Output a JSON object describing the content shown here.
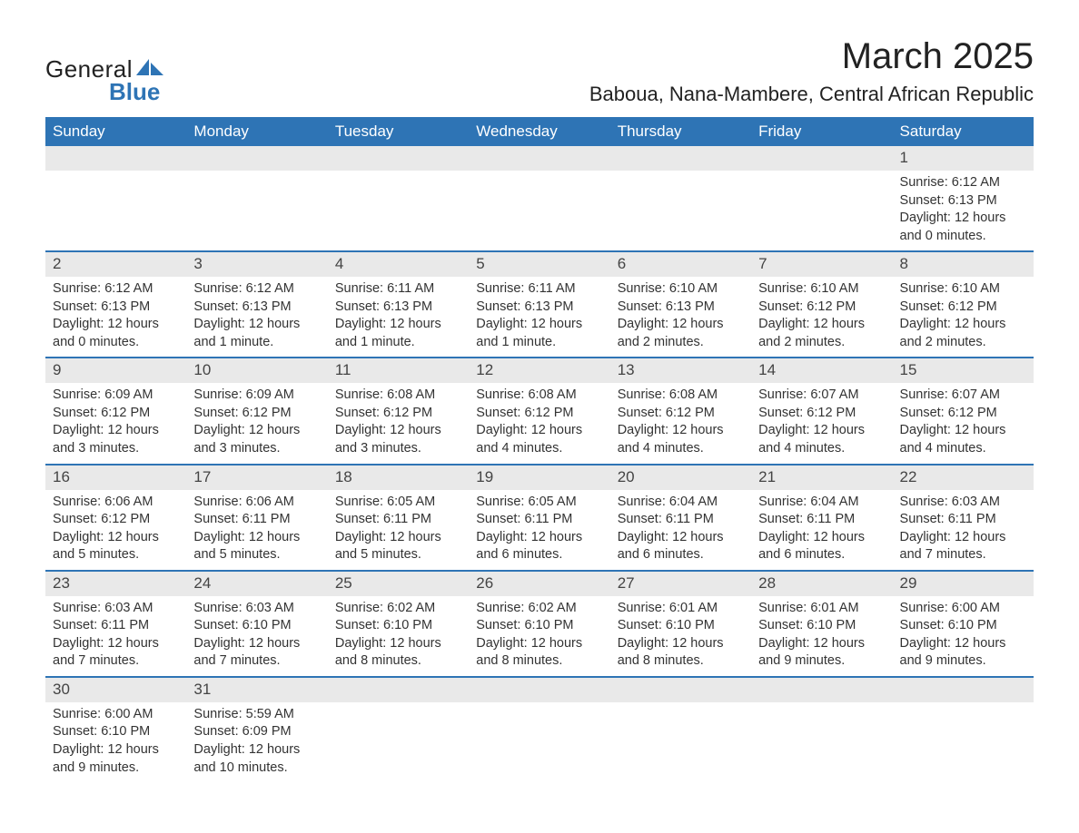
{
  "logo": {
    "line1": "General",
    "line2": "Blue",
    "brand_color": "#2e74b5"
  },
  "title": "March 2025",
  "location": "Baboua, Nana-Mambere, Central African Republic",
  "day_headers": [
    "Sunday",
    "Monday",
    "Tuesday",
    "Wednesday",
    "Thursday",
    "Friday",
    "Saturday"
  ],
  "colors": {
    "header_bg": "#2e74b5",
    "header_text": "#ffffff",
    "daynum_bg": "#e9e9e9",
    "row_border": "#2e74b5",
    "body_text": "#333333",
    "page_bg": "#ffffff"
  },
  "typography": {
    "title_fontsize": 40,
    "location_fontsize": 22,
    "header_fontsize": 17,
    "daynum_fontsize": 17,
    "detail_fontsize": 14.5
  },
  "weeks": [
    [
      null,
      null,
      null,
      null,
      null,
      null,
      {
        "n": "1",
        "sr": "Sunrise: 6:12 AM",
        "ss": "Sunset: 6:13 PM",
        "dl": "Daylight: 12 hours and 0 minutes."
      }
    ],
    [
      {
        "n": "2",
        "sr": "Sunrise: 6:12 AM",
        "ss": "Sunset: 6:13 PM",
        "dl": "Daylight: 12 hours and 0 minutes."
      },
      {
        "n": "3",
        "sr": "Sunrise: 6:12 AM",
        "ss": "Sunset: 6:13 PM",
        "dl": "Daylight: 12 hours and 1 minute."
      },
      {
        "n": "4",
        "sr": "Sunrise: 6:11 AM",
        "ss": "Sunset: 6:13 PM",
        "dl": "Daylight: 12 hours and 1 minute."
      },
      {
        "n": "5",
        "sr": "Sunrise: 6:11 AM",
        "ss": "Sunset: 6:13 PM",
        "dl": "Daylight: 12 hours and 1 minute."
      },
      {
        "n": "6",
        "sr": "Sunrise: 6:10 AM",
        "ss": "Sunset: 6:13 PM",
        "dl": "Daylight: 12 hours and 2 minutes."
      },
      {
        "n": "7",
        "sr": "Sunrise: 6:10 AM",
        "ss": "Sunset: 6:12 PM",
        "dl": "Daylight: 12 hours and 2 minutes."
      },
      {
        "n": "8",
        "sr": "Sunrise: 6:10 AM",
        "ss": "Sunset: 6:12 PM",
        "dl": "Daylight: 12 hours and 2 minutes."
      }
    ],
    [
      {
        "n": "9",
        "sr": "Sunrise: 6:09 AM",
        "ss": "Sunset: 6:12 PM",
        "dl": "Daylight: 12 hours and 3 minutes."
      },
      {
        "n": "10",
        "sr": "Sunrise: 6:09 AM",
        "ss": "Sunset: 6:12 PM",
        "dl": "Daylight: 12 hours and 3 minutes."
      },
      {
        "n": "11",
        "sr": "Sunrise: 6:08 AM",
        "ss": "Sunset: 6:12 PM",
        "dl": "Daylight: 12 hours and 3 minutes."
      },
      {
        "n": "12",
        "sr": "Sunrise: 6:08 AM",
        "ss": "Sunset: 6:12 PM",
        "dl": "Daylight: 12 hours and 4 minutes."
      },
      {
        "n": "13",
        "sr": "Sunrise: 6:08 AM",
        "ss": "Sunset: 6:12 PM",
        "dl": "Daylight: 12 hours and 4 minutes."
      },
      {
        "n": "14",
        "sr": "Sunrise: 6:07 AM",
        "ss": "Sunset: 6:12 PM",
        "dl": "Daylight: 12 hours and 4 minutes."
      },
      {
        "n": "15",
        "sr": "Sunrise: 6:07 AM",
        "ss": "Sunset: 6:12 PM",
        "dl": "Daylight: 12 hours and 4 minutes."
      }
    ],
    [
      {
        "n": "16",
        "sr": "Sunrise: 6:06 AM",
        "ss": "Sunset: 6:12 PM",
        "dl": "Daylight: 12 hours and 5 minutes."
      },
      {
        "n": "17",
        "sr": "Sunrise: 6:06 AM",
        "ss": "Sunset: 6:11 PM",
        "dl": "Daylight: 12 hours and 5 minutes."
      },
      {
        "n": "18",
        "sr": "Sunrise: 6:05 AM",
        "ss": "Sunset: 6:11 PM",
        "dl": "Daylight: 12 hours and 5 minutes."
      },
      {
        "n": "19",
        "sr": "Sunrise: 6:05 AM",
        "ss": "Sunset: 6:11 PM",
        "dl": "Daylight: 12 hours and 6 minutes."
      },
      {
        "n": "20",
        "sr": "Sunrise: 6:04 AM",
        "ss": "Sunset: 6:11 PM",
        "dl": "Daylight: 12 hours and 6 minutes."
      },
      {
        "n": "21",
        "sr": "Sunrise: 6:04 AM",
        "ss": "Sunset: 6:11 PM",
        "dl": "Daylight: 12 hours and 6 minutes."
      },
      {
        "n": "22",
        "sr": "Sunrise: 6:03 AM",
        "ss": "Sunset: 6:11 PM",
        "dl": "Daylight: 12 hours and 7 minutes."
      }
    ],
    [
      {
        "n": "23",
        "sr": "Sunrise: 6:03 AM",
        "ss": "Sunset: 6:11 PM",
        "dl": "Daylight: 12 hours and 7 minutes."
      },
      {
        "n": "24",
        "sr": "Sunrise: 6:03 AM",
        "ss": "Sunset: 6:10 PM",
        "dl": "Daylight: 12 hours and 7 minutes."
      },
      {
        "n": "25",
        "sr": "Sunrise: 6:02 AM",
        "ss": "Sunset: 6:10 PM",
        "dl": "Daylight: 12 hours and 8 minutes."
      },
      {
        "n": "26",
        "sr": "Sunrise: 6:02 AM",
        "ss": "Sunset: 6:10 PM",
        "dl": "Daylight: 12 hours and 8 minutes."
      },
      {
        "n": "27",
        "sr": "Sunrise: 6:01 AM",
        "ss": "Sunset: 6:10 PM",
        "dl": "Daylight: 12 hours and 8 minutes."
      },
      {
        "n": "28",
        "sr": "Sunrise: 6:01 AM",
        "ss": "Sunset: 6:10 PM",
        "dl": "Daylight: 12 hours and 9 minutes."
      },
      {
        "n": "29",
        "sr": "Sunrise: 6:00 AM",
        "ss": "Sunset: 6:10 PM",
        "dl": "Daylight: 12 hours and 9 minutes."
      }
    ],
    [
      {
        "n": "30",
        "sr": "Sunrise: 6:00 AM",
        "ss": "Sunset: 6:10 PM",
        "dl": "Daylight: 12 hours and 9 minutes."
      },
      {
        "n": "31",
        "sr": "Sunrise: 5:59 AM",
        "ss": "Sunset: 6:09 PM",
        "dl": "Daylight: 12 hours and 10 minutes."
      },
      null,
      null,
      null,
      null,
      null
    ]
  ]
}
